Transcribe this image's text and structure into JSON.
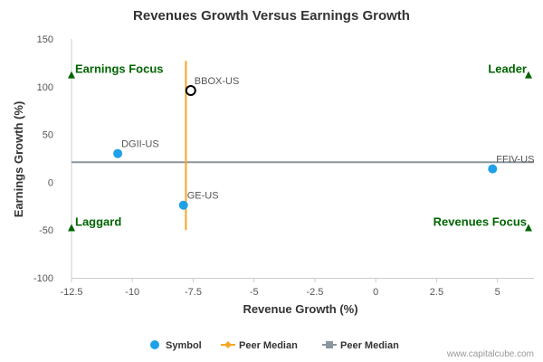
{
  "chart_data": {
    "type": "scatter",
    "title": "Revenues Growth Versus Earnings Growth",
    "xlabel": "Revenue Growth (%)",
    "ylabel": "Earnings Growth (%)",
    "xlim": [
      -12.5,
      6.5
    ],
    "ylim": [
      -100,
      150
    ],
    "xticks": [
      -12.5,
      -10,
      -7.5,
      -5,
      -2.5,
      0,
      2.5,
      5
    ],
    "xtick_labels": [
      "-12.5",
      "-10",
      "-7.5",
      "-5",
      "-2.5",
      "0",
      "2.5",
      "5"
    ],
    "yticks": [
      -100,
      -50,
      0,
      50,
      100,
      150
    ],
    "ytick_labels": [
      "-100",
      "-50",
      "0",
      "50",
      "100",
      "150"
    ],
    "points": [
      {
        "label": "BBOX-US",
        "x": -7.6,
        "y": 96,
        "highlight": true
      },
      {
        "label": "DGII-US",
        "x": -10.6,
        "y": 30,
        "highlight": false
      },
      {
        "label": "GE-US",
        "x": -7.9,
        "y": -24,
        "highlight": false
      },
      {
        "label": "FFIV-US",
        "x": 4.8,
        "y": 14,
        "highlight": false
      }
    ],
    "peer_median_x": -7.8,
    "peer_median_x_range": [
      -50,
      127
    ],
    "peer_median_y": 21,
    "quadrants": {
      "top_left": "Earnings Focus",
      "top_right": "Leader",
      "bottom_left": "Laggard",
      "bottom_right": "Revenues Focus"
    },
    "legend": [
      {
        "label": "Symbol",
        "type": "dot",
        "color": "#1ea1e8"
      },
      {
        "label": "Peer Median",
        "type": "line-diamond",
        "color": "#f5a623"
      },
      {
        "label": "Peer Median",
        "type": "line-square",
        "color": "#8c959d"
      }
    ],
    "legend_position": "bottom",
    "colors": {
      "point": "#1ea1e8",
      "highlight_stroke": "#000000",
      "vertical_median": "#f5a623",
      "horizontal_median": "#8c959d",
      "quadrant": "#006400"
    }
  },
  "footer": {
    "source": "www.capitalcube.com"
  }
}
